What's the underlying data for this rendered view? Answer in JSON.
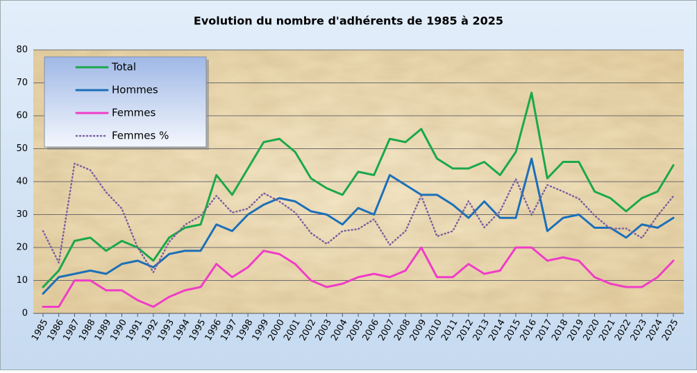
{
  "chart_data": {
    "type": "line",
    "title": "Evolution du nombre d'adhérents de 1985 à 2025",
    "categories": [
      "1985",
      "1986",
      "1987",
      "1988",
      "1989",
      "1990",
      "1991",
      "1992",
      "1993",
      "1994",
      "1995",
      "1996",
      "1997",
      "1998",
      "1999",
      "2000",
      "2001",
      "2002",
      "2003",
      "2004",
      "2005",
      "2006",
      "2007",
      "2008",
      "2009",
      "2010",
      "2011",
      "2012",
      "2013",
      "2014",
      "2015",
      "2016",
      "2017",
      "2018",
      "2019",
      "2020",
      "2021",
      "2022",
      "2023",
      "2024",
      "2025"
    ],
    "series": [
      {
        "name": "Total",
        "color": "#1aa84a",
        "style": "solid",
        "values": [
          8,
          13,
          22,
          23,
          19,
          22,
          20,
          16,
          23,
          26,
          27,
          42,
          36,
          44,
          52,
          53,
          49,
          41,
          38,
          36,
          43,
          42,
          53,
          52,
          56,
          47,
          44,
          44,
          46,
          42,
          49,
          67,
          41,
          46,
          46,
          37,
          35,
          31,
          35,
          37,
          45
        ]
      },
      {
        "name": "Hommes",
        "color": "#1b6fb8",
        "style": "solid",
        "values": [
          6,
          11,
          12,
          13,
          12,
          15,
          16,
          14,
          18,
          19,
          19,
          27,
          25,
          30,
          33,
          35,
          34,
          31,
          30,
          27,
          32,
          30,
          42,
          39,
          36,
          36,
          33,
          29,
          34,
          29,
          29,
          47,
          25,
          29,
          30,
          26,
          26,
          23,
          27,
          26,
          29
        ]
      },
      {
        "name": "Femmes",
        "color": "#f03cc8",
        "style": "solid",
        "values": [
          2,
          2,
          10,
          10,
          7,
          7,
          4,
          2,
          5,
          7,
          8,
          15,
          11,
          14,
          19,
          18,
          15,
          10,
          8,
          9,
          11,
          12,
          11,
          13,
          20,
          11,
          11,
          15,
          12,
          13,
          20,
          20,
          16,
          17,
          16,
          11,
          9,
          8,
          8,
          11,
          16
        ]
      },
      {
        "name": "Femmes %",
        "color": "#7a5fa0",
        "style": "dotted",
        "values": [
          25,
          15.4,
          45.5,
          43.5,
          36.8,
          31.8,
          20,
          12.5,
          21.7,
          26.9,
          29.6,
          35.7,
          30.6,
          31.8,
          36.5,
          34,
          30.6,
          24.4,
          21.1,
          25,
          25.6,
          28.6,
          20.8,
          25,
          35.7,
          23.4,
          25,
          34.1,
          26.1,
          31,
          40.8,
          29.9,
          39,
          37,
          34.8,
          29.7,
          25.7,
          25.8,
          22.9,
          29.7,
          35.6
        ]
      }
    ],
    "ylim": [
      0,
      80
    ],
    "yticks": [
      0,
      10,
      20,
      30,
      40,
      50,
      60,
      70,
      80
    ],
    "grid": true,
    "legend": "top-left"
  }
}
